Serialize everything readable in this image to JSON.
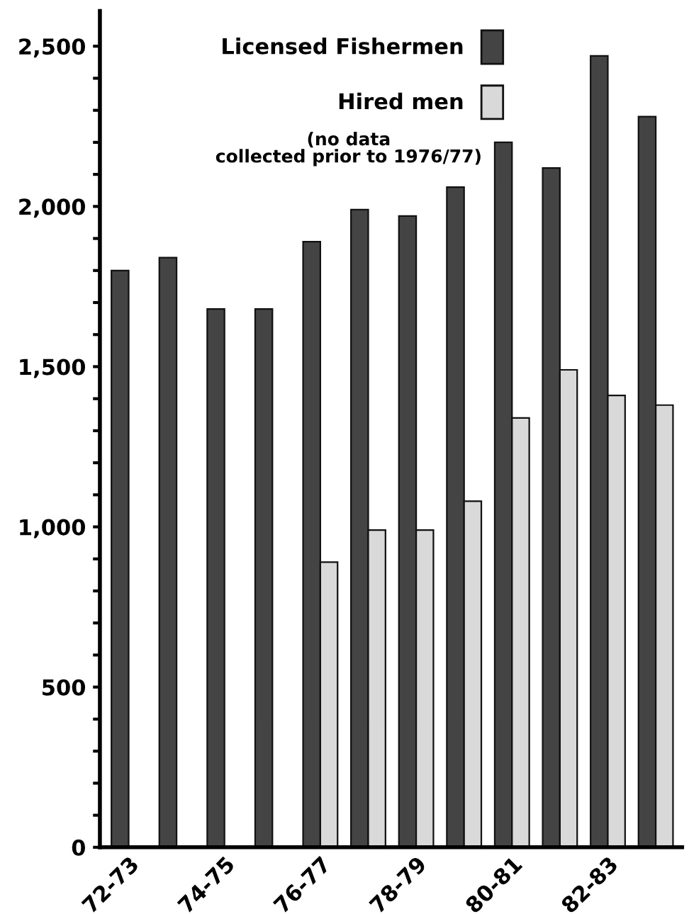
{
  "chart_data": {
    "type": "bar",
    "categories": [
      "72-73",
      null,
      "74-75",
      null,
      "76-77",
      null,
      "78-79",
      null,
      "80-81",
      null,
      "82-83",
      null
    ],
    "series": [
      {
        "name": "Licensed Fishermen",
        "color": "#444444",
        "values": [
          1800,
          1840,
          1680,
          1680,
          1890,
          1990,
          1970,
          2060,
          2200,
          2120,
          2470,
          2280
        ]
      },
      {
        "name": "Hired men",
        "color": "#d9d9d9",
        "values": [
          null,
          null,
          null,
          null,
          890,
          990,
          990,
          1080,
          1340,
          1490,
          1410,
          1380
        ]
      }
    ],
    "ylim": [
      0,
      2610
    ],
    "yticks": [
      {
        "value": 0,
        "label": "0"
      },
      {
        "value": 100,
        "label": null
      },
      {
        "value": 200,
        "label": null
      },
      {
        "value": 300,
        "label": null
      },
      {
        "value": 400,
        "label": null
      },
      {
        "value": 500,
        "label": "500"
      },
      {
        "value": 600,
        "label": null
      },
      {
        "value": 700,
        "label": null
      },
      {
        "value": 800,
        "label": null
      },
      {
        "value": 900,
        "label": null
      },
      {
        "value": 1000,
        "label": "1,000"
      },
      {
        "value": 1100,
        "label": null
      },
      {
        "value": 1200,
        "label": null
      },
      {
        "value": 1300,
        "label": null
      },
      {
        "value": 1400,
        "label": null
      },
      {
        "value": 1500,
        "label": "1,500"
      },
      {
        "value": 1600,
        "label": null
      },
      {
        "value": 1700,
        "label": null
      },
      {
        "value": 1800,
        "label": null
      },
      {
        "value": 1900,
        "label": null
      },
      {
        "value": 2000,
        "label": "2,000"
      },
      {
        "value": 2100,
        "label": null
      },
      {
        "value": 2200,
        "label": null
      },
      {
        "value": 2300,
        "label": null
      },
      {
        "value": 2400,
        "label": null
      },
      {
        "value": 2500,
        "label": "2,500"
      }
    ],
    "annotations": [
      "(no data\ncollected prior to 1976/77)"
    ],
    "legend": "top",
    "grid": false
  }
}
